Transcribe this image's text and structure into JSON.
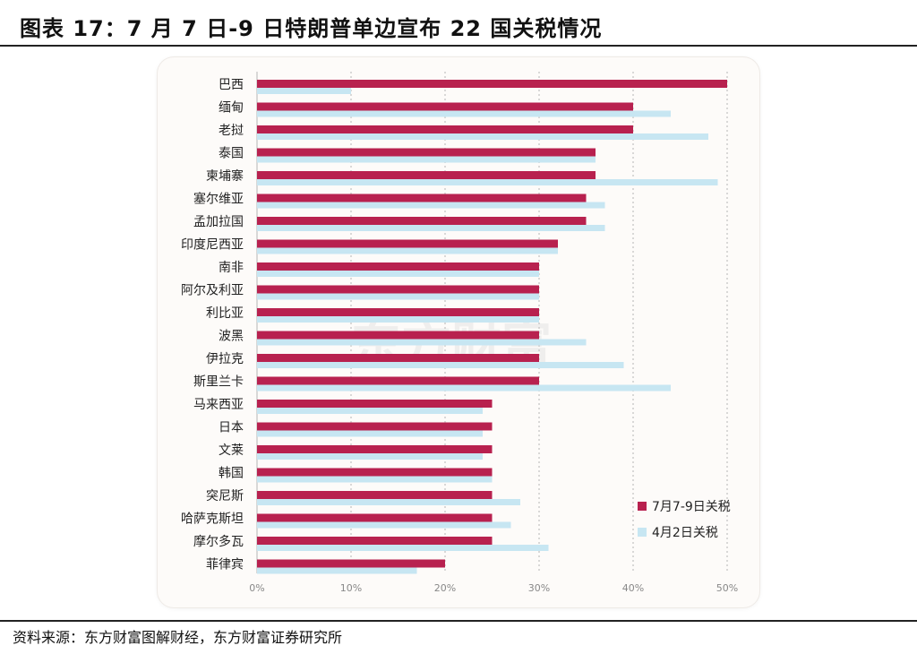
{
  "header": {
    "title": "图表 17：7 月 7 日-9 日特朗普单边宣布 22 国关税情况"
  },
  "footer": {
    "source": "资料来源：东方财富图解财经，东方财富证券研究所"
  },
  "watermark": "东方财富",
  "colors": {
    "series1": "#b8214f",
    "series2": "#c7e6f2",
    "grid": "#b5b5b5"
  },
  "chart_data": {
    "type": "bar",
    "orientation": "horizontal",
    "categories": [
      "巴西",
      "缅甸",
      "老挝",
      "泰国",
      "柬埔寨",
      "塞尔维亚",
      "孟加拉国",
      "印度尼西亚",
      "南非",
      "阿尔及利亚",
      "利比亚",
      "波黑",
      "伊拉克",
      "斯里兰卡",
      "马来西亚",
      "日本",
      "文莱",
      "韩国",
      "突尼斯",
      "哈萨克斯坦",
      "摩尔多瓦",
      "菲律宾"
    ],
    "series": [
      {
        "name": "7月7-9日关税",
        "values": [
          50,
          40,
          40,
          36,
          36,
          35,
          35,
          32,
          30,
          30,
          30,
          30,
          30,
          30,
          25,
          25,
          25,
          25,
          25,
          25,
          25,
          20
        ]
      },
      {
        "name": "4月2日关税",
        "values": [
          10,
          44,
          48,
          36,
          49,
          37,
          37,
          32,
          30,
          30,
          30,
          35,
          39,
          44,
          24,
          24,
          24,
          25,
          28,
          27,
          31,
          17
        ]
      }
    ],
    "xlim": [
      0,
      50
    ],
    "ticks": [
      "0%",
      "10%",
      "20%",
      "30%",
      "40%",
      "50%"
    ],
    "tick_values": [
      0,
      10,
      20,
      30,
      40,
      50
    ],
    "legend_position": "bottom-right",
    "grid": "vertical dotted"
  }
}
